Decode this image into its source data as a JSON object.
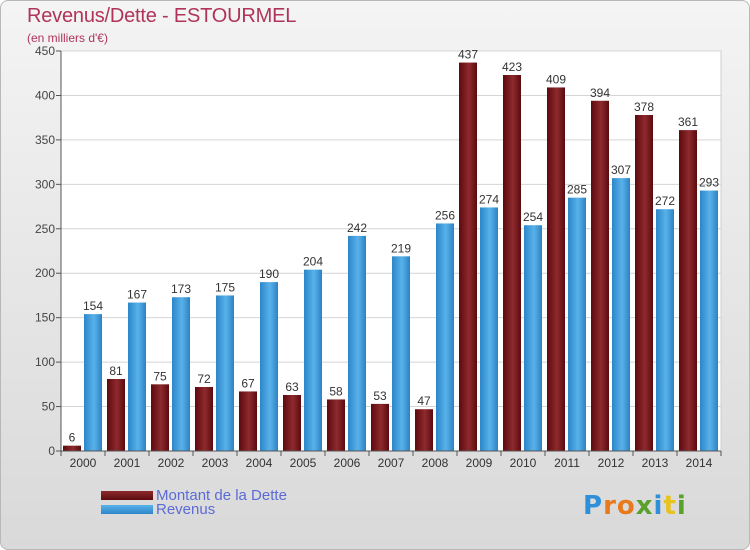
{
  "title": "Revenus/Dette - ESTOURMEL",
  "subtitle": "(en milliers d'€)",
  "logo_text": "Proxiti",
  "chart_data": {
    "type": "bar",
    "categories": [
      "2000",
      "2001",
      "2002",
      "2003",
      "2004",
      "2005",
      "2006",
      "2007",
      "2008",
      "2009",
      "2010",
      "2011",
      "2012",
      "2013",
      "2014"
    ],
    "series": [
      {
        "name": "Montant de la Dette",
        "color": "#7a0f14",
        "values": [
          6,
          81,
          75,
          72,
          67,
          63,
          58,
          53,
          47,
          437,
          423,
          409,
          394,
          378,
          361
        ]
      },
      {
        "name": "Revenus",
        "color": "#3a9de0",
        "values": [
          154,
          167,
          173,
          175,
          190,
          204,
          242,
          219,
          256,
          274,
          254,
          285,
          307,
          272,
          293
        ]
      }
    ],
    "ylim": [
      0,
      450
    ],
    "yticks": [
      0,
      50,
      100,
      150,
      200,
      250,
      300,
      350,
      400,
      450
    ],
    "grid": true,
    "legend_position": "bottom-left"
  }
}
